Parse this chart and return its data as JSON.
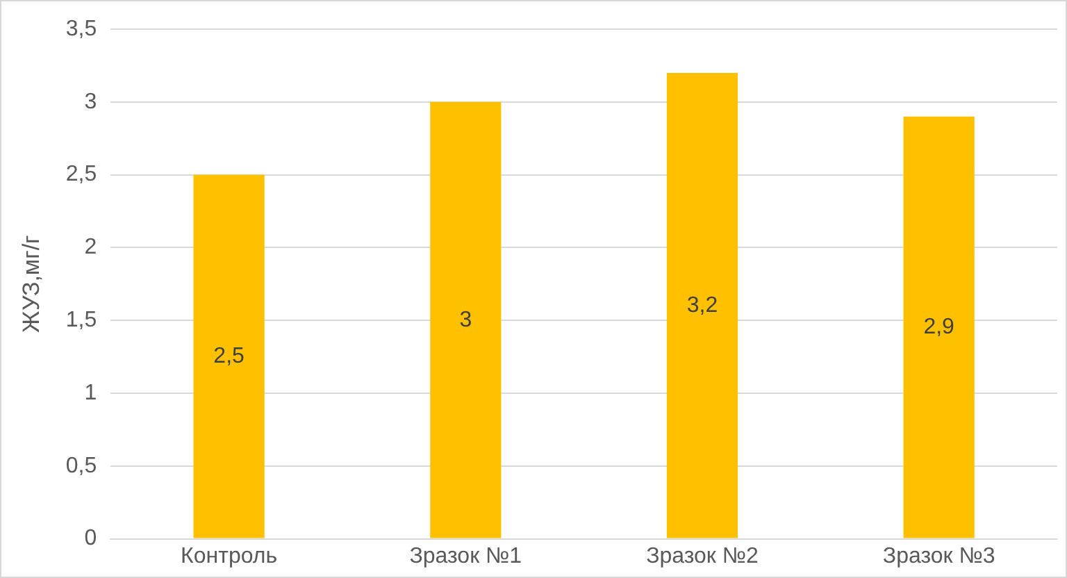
{
  "chart_data": {
    "type": "bar",
    "ylabel": "ЖУЗ,мг/г",
    "categories": [
      "Контроль",
      "Зразок №1",
      "Зразок №2",
      "Зразок №3"
    ],
    "values": [
      2.5,
      3,
      3.2,
      2.9
    ],
    "color": "#ffc000",
    "value_labels": [
      "2,5",
      "3",
      "3,2",
      "2,9"
    ],
    "ylim": [
      0,
      3.5
    ],
    "yticks": [
      0,
      {
        "value": 0.5,
        "label": "0,5"
      },
      1,
      {
        "value": 1.5,
        "label": "1,5"
      },
      2,
      {
        "value": 2.5,
        "label": "2,5"
      },
      3,
      {
        "value": 3.5,
        "label": "3,5"
      }
    ],
    "grid": "y",
    "legend": false
  }
}
